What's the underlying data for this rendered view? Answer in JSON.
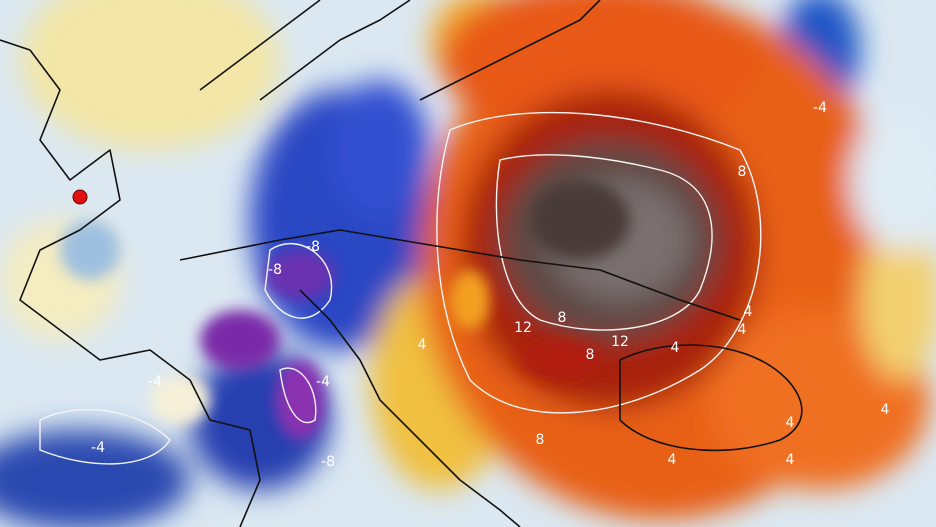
{
  "contour_labels": [
    -4,
    8,
    -8,
    -8,
    12,
    8,
    12,
    8,
    4,
    4,
    4,
    -4,
    -4,
    -8,
    -4,
    8,
    4,
    4,
    4,
    4,
    4
  ]
}
